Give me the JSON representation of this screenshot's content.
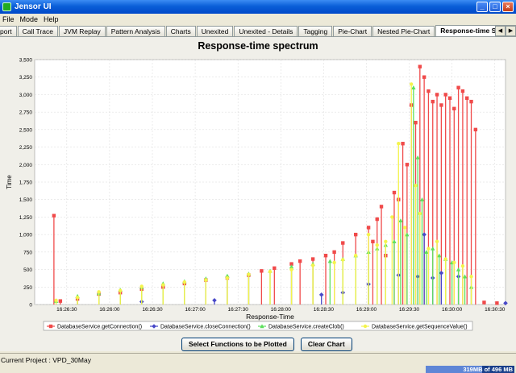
{
  "window": {
    "title": "Jensor UI"
  },
  "menu": {
    "items": [
      "File",
      "Mode",
      "Help"
    ]
  },
  "tabs": [
    {
      "label": "port"
    },
    {
      "label": "Call Trace"
    },
    {
      "label": "JVM Replay"
    },
    {
      "label": "Pattern Analysis"
    },
    {
      "label": "Charts"
    },
    {
      "label": "Unexited"
    },
    {
      "label": "Unexited - Details"
    },
    {
      "label": "Tagging"
    },
    {
      "label": "Pie-Chart"
    },
    {
      "label": "Nested Pie-Chart"
    },
    {
      "label": "Response-time Spectrum"
    }
  ],
  "active_tab": "Response-time Spectrum",
  "buttons": {
    "select": "Select Functions to be Plotted",
    "clear": "Clear Chart"
  },
  "status": {
    "project": "Current Project : VPD_30May",
    "memory": "319MB of 496 MB",
    "memory_used_fraction": 0.64
  },
  "colors": {
    "series_red": "#f04a4a",
    "series_blue": "#4848c8",
    "series_green": "#5ee05e",
    "series_yellow": "#f4f44c",
    "grid": "#d8d8d8"
  },
  "chart_data": {
    "type": "scatter",
    "title": "Response-time spectrum",
    "xlabel": "Response-Time",
    "ylabel": "Time",
    "yticks": [
      0,
      250,
      500,
      750,
      1000,
      1250,
      1500,
      1750,
      2000,
      2250,
      2500,
      2750,
      3000,
      3250,
      3500
    ],
    "ytick_labels": [
      "0",
      "250",
      "500",
      "750",
      "1,000",
      "1,250",
      "1,500",
      "1,750",
      "2,000",
      "2,250",
      "2,500",
      "2,750",
      "3,000",
      "3,250",
      "3,500"
    ],
    "xtick_labels": [
      "16:26:30",
      "16:26:00",
      "16:26:30",
      "16:27:00",
      "16:27:30",
      "16:28:00",
      "16:28:30",
      "16:29:00",
      "16:29:30",
      "16:30:00",
      "16:30:30"
    ],
    "ylim": [
      0,
      3500
    ],
    "legend_position": "bottom",
    "series": [
      {
        "name": "DatabaseService.getConnection()",
        "color": "#f04a4a",
        "marker": "square",
        "x": [
          0.45,
          0.6,
          1.0,
          1.5,
          2.0,
          2.5,
          3.0,
          3.5,
          4.0,
          4.5,
          5.0,
          5.3,
          5.6,
          6.0,
          6.2,
          6.5,
          6.8,
          7.0,
          7.2,
          7.5,
          7.8,
          7.9,
          8.0,
          8.1,
          8.2,
          8.4,
          8.5,
          8.6,
          8.7,
          8.8,
          8.9,
          9.0,
          9.1,
          9.2,
          9.3,
          9.4,
          9.5,
          9.6,
          9.7,
          9.8,
          9.9,
          10.0,
          10.1,
          10.2,
          10.3,
          10.5,
          10.8
        ],
        "y": [
          1270,
          50,
          80,
          150,
          170,
          220,
          250,
          300,
          350,
          380,
          420,
          480,
          520,
          580,
          620,
          650,
          700,
          750,
          880,
          1000,
          1100,
          900,
          1220,
          1400,
          700,
          1600,
          1500,
          2300,
          2000,
          2850,
          2600,
          3400,
          3250,
          3050,
          2900,
          3000,
          2850,
          3000,
          2950,
          2800,
          3100,
          3050,
          2950,
          2900,
          2500,
          30,
          20
        ]
      },
      {
        "name": "DatabaseService.closeConnection()",
        "color": "#4848c8",
        "marker": "diamond",
        "x": [
          2.5,
          4.2,
          6.7,
          7.2,
          7.8,
          8.5,
          8.95,
          9.1,
          9.3,
          9.5,
          9.9,
          11.0
        ],
        "y": [
          40,
          60,
          140,
          170,
          290,
          420,
          400,
          1000,
          380,
          450,
          400,
          20
        ]
      },
      {
        "name": "DatabaseService.createClob()",
        "color": "#5ee05e",
        "marker": "triangle",
        "x": [
          0.5,
          1.0,
          1.5,
          2.0,
          2.5,
          3.0,
          3.5,
          4.0,
          4.5,
          5.0,
          5.5,
          6.0,
          6.5,
          6.9,
          7.2,
          7.5,
          7.8,
          8.0,
          8.2,
          8.4,
          8.55,
          8.7,
          8.85,
          8.95,
          9.05,
          9.15,
          9.3,
          9.45,
          9.6,
          9.75,
          9.9,
          10.05,
          10.2
        ],
        "y": [
          50,
          120,
          160,
          210,
          250,
          300,
          330,
          370,
          410,
          440,
          480,
          540,
          580,
          620,
          650,
          700,
          750,
          800,
          850,
          900,
          1200,
          1000,
          3100,
          2100,
          1500,
          750,
          800,
          700,
          650,
          600,
          500,
          400,
          250
        ]
      },
      {
        "name": "DatabaseService.getSequenceValue()",
        "color": "#f4f44c",
        "marker": "circle",
        "x": [
          0.5,
          1.0,
          1.5,
          2.0,
          2.5,
          3.0,
          3.5,
          4.0,
          4.5,
          5.0,
          5.5,
          6.0,
          6.5,
          7.0,
          7.2,
          7.5,
          7.8,
          8.0,
          8.2,
          8.35,
          8.5,
          8.65,
          8.8,
          8.9,
          9.0,
          9.2,
          9.4,
          9.6,
          9.8,
          10.0,
          10.2
        ],
        "y": [
          60,
          100,
          180,
          200,
          260,
          280,
          320,
          350,
          380,
          430,
          470,
          500,
          560,
          600,
          640,
          700,
          1000,
          850,
          900,
          1250,
          2300,
          1100,
          3150,
          1700,
          1300,
          800,
          900,
          650,
          600,
          550,
          400
        ]
      }
    ]
  }
}
